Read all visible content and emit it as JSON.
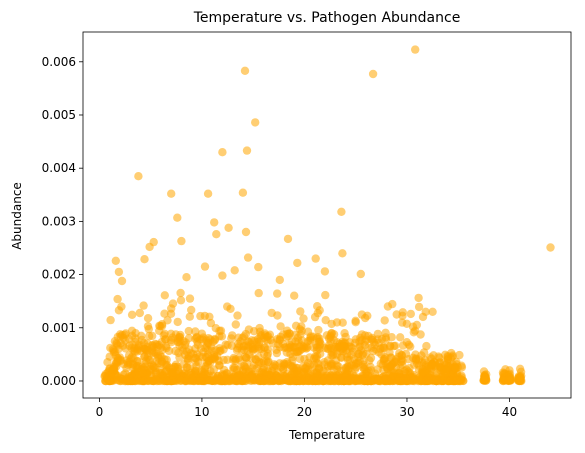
{
  "chart_data": {
    "type": "scatter",
    "title": "Temperature vs. Pathogen Abundance",
    "xlabel": "Temperature",
    "ylabel": "Abundance",
    "xlim": [
      -1.6,
      46.0
    ],
    "ylim": [
      -0.00032,
      0.00656
    ],
    "x_ticks": [
      0,
      10,
      20,
      30,
      40
    ],
    "y_ticks": [
      0.0,
      0.001,
      0.002,
      0.003,
      0.004,
      0.005,
      0.006
    ],
    "y_tick_labels": [
      "0.000",
      "0.001",
      "0.002",
      "0.003",
      "0.004",
      "0.005",
      "0.006"
    ],
    "grid": false,
    "legend": "none",
    "marker_color": "#ffa500",
    "marker_alpha": 0.55,
    "highlighted_points": [
      {
        "x": 30.8,
        "y": 0.00623
      },
      {
        "x": 14.2,
        "y": 0.00583
      },
      {
        "x": 26.7,
        "y": 0.00577
      },
      {
        "x": 15.2,
        "y": 0.00486
      },
      {
        "x": 14.4,
        "y": 0.00433
      },
      {
        "x": 12.0,
        "y": 0.0043
      },
      {
        "x": 3.8,
        "y": 0.00385
      },
      {
        "x": 7.0,
        "y": 0.00352
      },
      {
        "x": 10.6,
        "y": 0.00352
      },
      {
        "x": 14.0,
        "y": 0.00354
      },
      {
        "x": 23.6,
        "y": 0.00318
      },
      {
        "x": 7.6,
        "y": 0.00307
      },
      {
        "x": 11.2,
        "y": 0.00298
      },
      {
        "x": 12.6,
        "y": 0.00288
      },
      {
        "x": 14.3,
        "y": 0.0028
      },
      {
        "x": 11.4,
        "y": 0.00276
      },
      {
        "x": 18.4,
        "y": 0.00267
      },
      {
        "x": 8.0,
        "y": 0.00263
      },
      {
        "x": 5.3,
        "y": 0.00261
      },
      {
        "x": 4.9,
        "y": 0.00252
      },
      {
        "x": 44.0,
        "y": 0.00251
      },
      {
        "x": 23.7,
        "y": 0.0024
      },
      {
        "x": 14.5,
        "y": 0.00232
      },
      {
        "x": 1.6,
        "y": 0.00226
      },
      {
        "x": 4.4,
        "y": 0.00229
      },
      {
        "x": 21.1,
        "y": 0.0023
      },
      {
        "x": 19.3,
        "y": 0.00222
      },
      {
        "x": 15.5,
        "y": 0.00214
      },
      {
        "x": 10.3,
        "y": 0.00215
      },
      {
        "x": 13.2,
        "y": 0.00208
      },
      {
        "x": 1.9,
        "y": 0.00205
      },
      {
        "x": 25.5,
        "y": 0.00201
      },
      {
        "x": 22.0,
        "y": 0.00206
      },
      {
        "x": 12.0,
        "y": 0.00198
      },
      {
        "x": 2.2,
        "y": 0.00188
      },
      {
        "x": 8.5,
        "y": 0.00195
      },
      {
        "x": 17.6,
        "y": 0.0019
      },
      {
        "x": 29.0,
        "y": 0.00125
      },
      {
        "x": 32.5,
        "y": 0.0013
      }
    ],
    "dense_band": {
      "x_range": [
        0.5,
        41.2
      ],
      "y_range": [
        0.0,
        0.0012
      ],
      "note_count": 0
    },
    "discrete_columns_x": [
      37.6,
      39.5,
      40.0,
      41.0
    ]
  }
}
